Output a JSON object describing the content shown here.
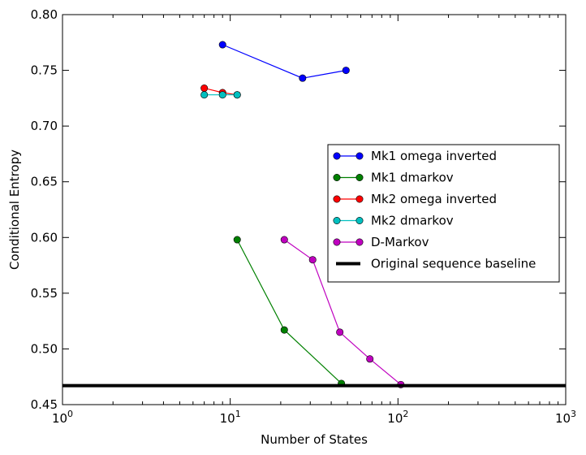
{
  "chart_data": {
    "type": "line",
    "xscale": "log",
    "xlabel": "Number of States",
    "ylabel": "Conditional Entropy",
    "xlim": [
      1,
      1000
    ],
    "ylim": [
      0.45,
      0.8
    ],
    "xticks": [
      1,
      10,
      100,
      1000
    ],
    "xtick_labels": [
      {
        "base": "10",
        "exp": "0"
      },
      {
        "base": "10",
        "exp": "1"
      },
      {
        "base": "10",
        "exp": "2"
      },
      {
        "base": "10",
        "exp": "3"
      }
    ],
    "yticks": [
      0.45,
      0.5,
      0.55,
      0.6,
      0.65,
      0.7,
      0.75,
      0.8
    ],
    "ytick_labels": [
      "0.45",
      "0.50",
      "0.55",
      "0.60",
      "0.65",
      "0.70",
      "0.75",
      "0.80"
    ],
    "grid": false,
    "legend_position": "right",
    "series": [
      {
        "name": "Mk1 omega inverted",
        "color": "#0000ff",
        "marker": "circle",
        "x": [
          9,
          27,
          49
        ],
        "y": [
          0.773,
          0.743,
          0.75
        ]
      },
      {
        "name": "Mk1 dmarkov",
        "color": "#008000",
        "marker": "circle",
        "x": [
          11,
          21,
          46
        ],
        "y": [
          0.598,
          0.517,
          0.469
        ]
      },
      {
        "name": "Mk2 omega inverted",
        "color": "#ff0000",
        "marker": "circle",
        "x": [
          7,
          9,
          11
        ],
        "y": [
          0.734,
          0.73,
          0.728
        ]
      },
      {
        "name": "Mk2 dmarkov",
        "color": "#00bfbf",
        "marker": "circle",
        "x": [
          7,
          9,
          11
        ],
        "y": [
          0.728,
          0.728,
          0.728
        ]
      },
      {
        "name": "D-Markov",
        "color": "#bf00bf",
        "marker": "circle",
        "x": [
          21,
          31,
          45,
          68,
          104
        ],
        "y": [
          0.598,
          0.58,
          0.515,
          0.491,
          0.468
        ]
      },
      {
        "name": "Original sequence baseline",
        "color": "#000000",
        "marker": "none",
        "style": "hline",
        "y": 0.467
      }
    ]
  }
}
